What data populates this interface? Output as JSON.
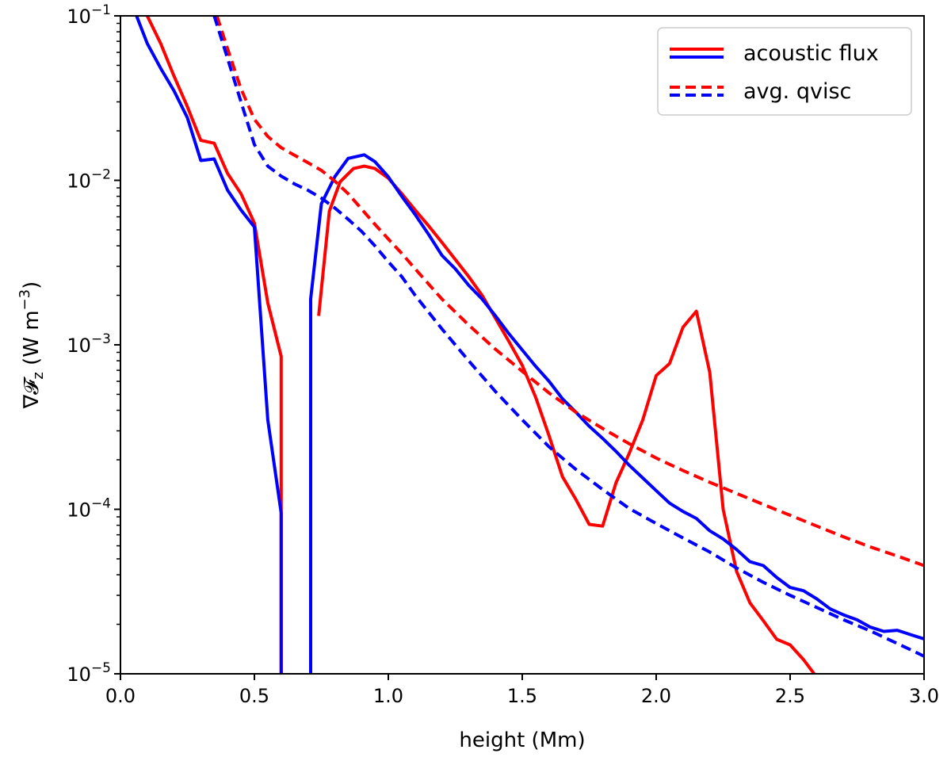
{
  "chart_data": {
    "type": "line",
    "title": "",
    "xlabel": "height (Mm)",
    "ylabel_symbol": "∇𝓕",
    "ylabel_subscript": "z",
    "ylabel_unit": "(W m",
    "ylabel_unit_exp": "−3",
    "ylabel_close": ")",
    "xlim": [
      0.0,
      3.0
    ],
    "ylim": [
      1e-05,
      0.1
    ],
    "yscale": "log",
    "x_ticks": [
      "0.0",
      "0.5",
      "1.0",
      "1.5",
      "2.0",
      "2.5",
      "3.0"
    ],
    "y_ticks": [
      {
        "base": "10",
        "exp": "−5",
        "value": 1e-05
      },
      {
        "base": "10",
        "exp": "−4",
        "value": 0.0001
      },
      {
        "base": "10",
        "exp": "−3",
        "value": 0.001
      },
      {
        "base": "10",
        "exp": "−2",
        "value": 0.01
      },
      {
        "base": "10",
        "exp": "−1",
        "value": 0.1
      }
    ],
    "legend": {
      "position": "top-right",
      "entries": [
        {
          "label": "acoustic flux",
          "style": "solid",
          "colors": [
            "#ff0000",
            "#0000ff"
          ]
        },
        {
          "label": "avg. qvisc",
          "style": "dashed",
          "colors": [
            "#ff0000",
            "#0000ff"
          ]
        }
      ]
    },
    "series": [
      {
        "name": "acoustic flux (red)",
        "color": "#ff0000",
        "style": "solid",
        "segments": [
          [
            [
              0.1,
              0.1
            ],
            [
              0.15,
              0.068
            ],
            [
              0.2,
              0.043
            ],
            [
              0.25,
              0.028
            ],
            [
              0.3,
              0.0175
            ],
            [
              0.35,
              0.0168
            ],
            [
              0.4,
              0.011
            ],
            [
              0.45,
              0.0083
            ],
            [
              0.5,
              0.0055
            ],
            [
              0.55,
              0.0018
            ],
            [
              0.6,
              0.00085
            ],
            [
              0.6,
              1e-05
            ]
          ],
          [
            [
              0.74,
              0.0015
            ],
            [
              0.78,
              0.0065
            ],
            [
              0.82,
              0.0098
            ],
            [
              0.87,
              0.0118
            ],
            [
              0.91,
              0.0122
            ],
            [
              0.95,
              0.0118
            ],
            [
              1.0,
              0.0103
            ],
            [
              1.05,
              0.0083
            ],
            [
              1.1,
              0.0066
            ],
            [
              1.15,
              0.0053
            ],
            [
              1.2,
              0.0042
            ],
            [
              1.25,
              0.0033
            ],
            [
              1.3,
              0.0026
            ],
            [
              1.35,
              0.002
            ],
            [
              1.4,
              0.00145
            ],
            [
              1.45,
              0.00105
            ],
            [
              1.5,
              0.00075
            ],
            [
              1.55,
              0.00048
            ],
            [
              1.6,
              0.00028
            ],
            [
              1.65,
              0.000158
            ],
            [
              1.7,
              0.000115
            ],
            [
              1.75,
              8.1e-05
            ],
            [
              1.8,
              7.9e-05
            ],
            [
              1.85,
              0.000145
            ],
            [
              1.9,
              0.00022
            ],
            [
              1.95,
              0.00035
            ],
            [
              2.0,
              0.00065
            ],
            [
              2.05,
              0.00077
            ],
            [
              2.1,
              0.00128
            ],
            [
              2.15,
              0.0016
            ],
            [
              2.2,
              0.00068
            ],
            [
              2.25,
              0.0001
            ],
            [
              2.3,
              4.2e-05
            ],
            [
              2.35,
              2.7e-05
            ],
            [
              2.4,
              2.1e-05
            ],
            [
              2.45,
              1.62e-05
            ],
            [
              2.5,
              1.5e-05
            ],
            [
              2.55,
              1.22e-05
            ],
            [
              2.6,
              9.5e-06
            ]
          ]
        ]
      },
      {
        "name": "acoustic flux (blue)",
        "color": "#0000ff",
        "style": "solid",
        "segments": [
          [
            [
              0.06,
              0.1
            ],
            [
              0.1,
              0.068
            ],
            [
              0.15,
              0.048
            ],
            [
              0.2,
              0.035
            ],
            [
              0.25,
              0.024
            ],
            [
              0.3,
              0.0132
            ],
            [
              0.35,
              0.0135
            ],
            [
              0.4,
              0.0087
            ],
            [
              0.45,
              0.0066
            ],
            [
              0.5,
              0.0052
            ],
            [
              0.55,
              0.00035
            ],
            [
              0.6,
              9.5e-05
            ],
            [
              0.6,
              1e-05
            ]
          ],
          [
            [
              0.71,
              1e-05
            ],
            [
              0.71,
              0.0019
            ],
            [
              0.75,
              0.0072
            ],
            [
              0.8,
              0.0105
            ],
            [
              0.85,
              0.0136
            ],
            [
              0.91,
              0.0143
            ],
            [
              0.95,
              0.013
            ],
            [
              1.0,
              0.0105
            ],
            [
              1.05,
              0.008
            ],
            [
              1.1,
              0.0062
            ],
            [
              1.15,
              0.0047
            ],
            [
              1.2,
              0.0035
            ],
            [
              1.25,
              0.0029
            ],
            [
              1.3,
              0.0023
            ],
            [
              1.35,
              0.0019
            ],
            [
              1.4,
              0.0015
            ],
            [
              1.45,
              0.00117
            ],
            [
              1.5,
              0.00093
            ],
            [
              1.55,
              0.00074
            ],
            [
              1.6,
              0.0006
            ],
            [
              1.65,
              0.00047
            ],
            [
              1.7,
              0.00039
            ],
            [
              1.75,
              0.00032
            ],
            [
              1.8,
              0.00027
            ],
            [
              1.85,
              0.000225
            ],
            [
              1.9,
              0.000185
            ],
            [
              1.95,
              0.000155
            ],
            [
              2.0,
              0.00013
            ],
            [
              2.05,
              0.000109
            ],
            [
              2.1,
              9.7e-05
            ],
            [
              2.15,
              8.8e-05
            ],
            [
              2.2,
              7.4e-05
            ],
            [
              2.25,
              6.6e-05
            ],
            [
              2.3,
              5.7e-05
            ],
            [
              2.35,
              4.8e-05
            ],
            [
              2.4,
              4.55e-05
            ],
            [
              2.45,
              3.85e-05
            ],
            [
              2.5,
              3.35e-05
            ],
            [
              2.55,
              3.2e-05
            ],
            [
              2.6,
              2.85e-05
            ],
            [
              2.65,
              2.48e-05
            ],
            [
              2.7,
              2.28e-05
            ],
            [
              2.75,
              2.13e-05
            ],
            [
              2.8,
              1.92e-05
            ],
            [
              2.85,
              1.81e-05
            ],
            [
              2.9,
              1.84e-05
            ],
            [
              2.95,
              1.73e-05
            ],
            [
              3.0,
              1.63e-05
            ]
          ]
        ]
      },
      {
        "name": "avg. qvisc (red)",
        "color": "#ff0000",
        "style": "dashed",
        "segments": [
          [
            [
              0.36,
              0.1
            ],
            [
              0.4,
              0.063
            ],
            [
              0.45,
              0.036
            ],
            [
              0.5,
              0.0235
            ],
            [
              0.55,
              0.0185
            ],
            [
              0.6,
              0.0158
            ],
            [
              0.65,
              0.0142
            ],
            [
              0.7,
              0.0128
            ],
            [
              0.75,
              0.0115
            ],
            [
              0.8,
              0.0099
            ],
            [
              0.85,
              0.0083
            ],
            [
              0.9,
              0.0067
            ],
            [
              0.95,
              0.0054
            ],
            [
              1.0,
              0.0044
            ],
            [
              1.05,
              0.0036
            ],
            [
              1.1,
              0.0029
            ],
            [
              1.2,
              0.0019
            ],
            [
              1.3,
              0.00132
            ],
            [
              1.4,
              0.00094
            ],
            [
              1.5,
              0.00069
            ],
            [
              1.6,
              0.00051
            ],
            [
              1.7,
              0.00039
            ],
            [
              1.8,
              0.00031
            ],
            [
              1.9,
              0.00025
            ],
            [
              2.0,
              0.000205
            ],
            [
              2.1,
              0.000172
            ],
            [
              2.2,
              0.000146
            ],
            [
              2.3,
              0.000125
            ],
            [
              2.4,
              0.000107
            ],
            [
              2.5,
              9.2e-05
            ],
            [
              2.6,
              7.9e-05
            ],
            [
              2.7,
              6.8e-05
            ],
            [
              2.8,
              5.9e-05
            ],
            [
              2.9,
              5.2e-05
            ],
            [
              3.0,
              4.55e-05
            ]
          ]
        ]
      },
      {
        "name": "avg. qvisc (blue)",
        "color": "#0000ff",
        "style": "dashed",
        "segments": [
          [
            [
              0.35,
              0.1
            ],
            [
              0.4,
              0.055
            ],
            [
              0.45,
              0.03
            ],
            [
              0.5,
              0.0165
            ],
            [
              0.55,
              0.0122
            ],
            [
              0.6,
              0.0106
            ],
            [
              0.65,
              0.0095
            ],
            [
              0.7,
              0.0087
            ],
            [
              0.75,
              0.0078
            ],
            [
              0.8,
              0.0068
            ],
            [
              0.85,
              0.0058
            ],
            [
              0.9,
              0.0049
            ],
            [
              0.95,
              0.004
            ],
            [
              1.0,
              0.0032
            ],
            [
              1.05,
              0.0026
            ],
            [
              1.1,
              0.002
            ],
            [
              1.2,
              0.00125
            ],
            [
              1.3,
              0.0008
            ],
            [
              1.4,
              0.00052
            ],
            [
              1.5,
              0.00035
            ],
            [
              1.6,
              0.00024
            ],
            [
              1.7,
              0.000175
            ],
            [
              1.8,
              0.000132
            ],
            [
              1.9,
              0.000101
            ],
            [
              2.0,
              8.2e-05
            ],
            [
              2.1,
              6.7e-05
            ],
            [
              2.2,
              5.5e-05
            ],
            [
              2.3,
              4.4e-05
            ],
            [
              2.4,
              3.6e-05
            ],
            [
              2.5,
              3e-05
            ],
            [
              2.6,
              2.53e-05
            ],
            [
              2.7,
              2.13e-05
            ],
            [
              2.8,
              1.82e-05
            ],
            [
              2.9,
              1.53e-05
            ],
            [
              3.0,
              1.28e-05
            ]
          ]
        ]
      }
    ]
  }
}
